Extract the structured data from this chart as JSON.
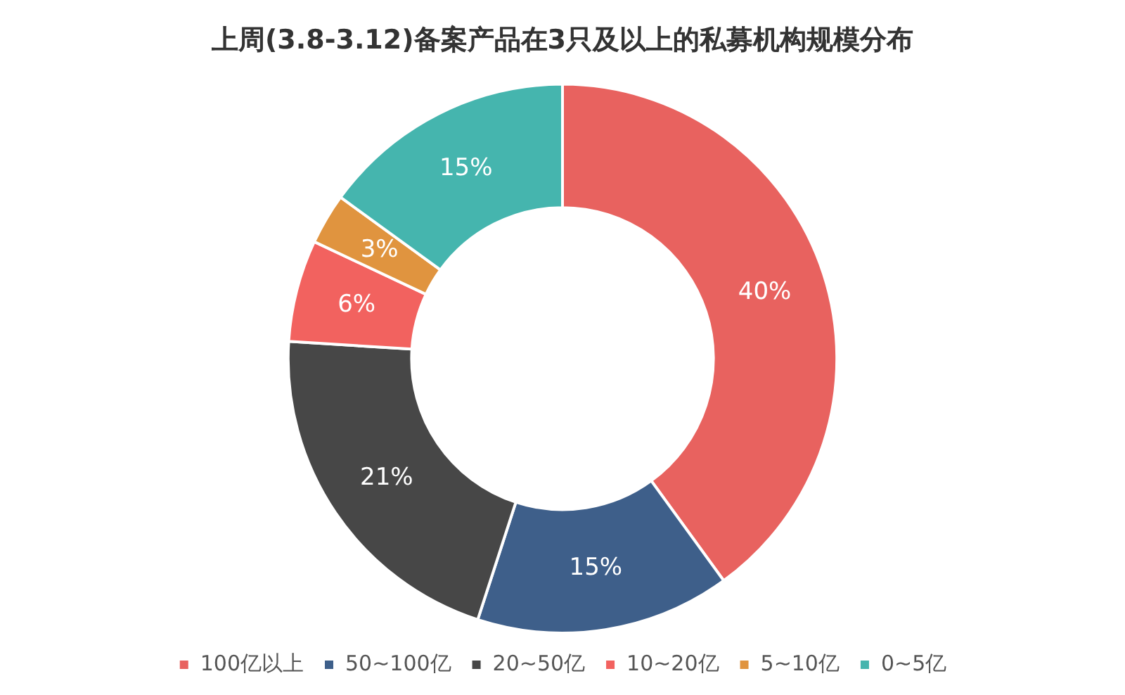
{
  "chart_data": {
    "type": "donut",
    "title": "上周(3.8-3.12)备案产品在3只及以上的私募机构规模分布",
    "categories": [
      "100亿以上",
      "50~100亿",
      "20~50亿",
      "10~20亿",
      "5~10亿",
      "0~5亿"
    ],
    "values": [
      40,
      15,
      21,
      6,
      3,
      15
    ],
    "value_labels": [
      "40%",
      "15%",
      "21%",
      "6%",
      "3%",
      "15%"
    ],
    "colors": [
      "#e8625f",
      "#3e5f8a",
      "#474747",
      "#f2625f",
      "#e0943f",
      "#45b5ae"
    ],
    "legend": "bottom"
  }
}
